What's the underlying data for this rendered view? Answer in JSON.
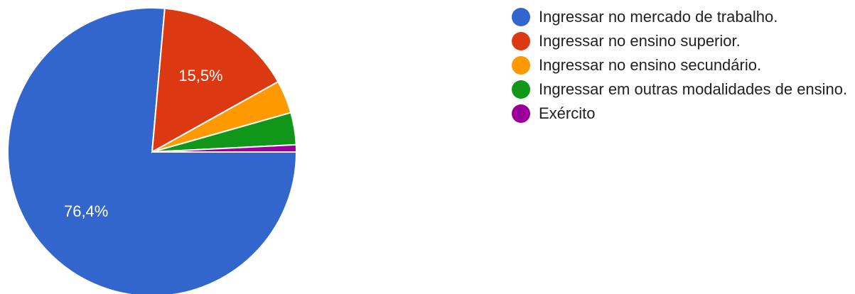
{
  "chart_data": {
    "type": "pie",
    "slices": [
      {
        "label": "Ingressar no mercado de trabalho.",
        "value": 76.4,
        "display": "76,4%",
        "color": "#3366cc"
      },
      {
        "label": "Ingressar no ensino superior.",
        "value": 15.5,
        "display": "15,5%",
        "color": "#dc3912"
      },
      {
        "label": "Ingressar no ensino secundário.",
        "value": 3.7,
        "display": "",
        "color": "#ff9900"
      },
      {
        "label": "Ingressar em outras modalidades de ensino.",
        "value": 3.6,
        "display": "",
        "color": "#109618"
      },
      {
        "label": "Exército",
        "value": 0.8,
        "display": "",
        "color": "#990099"
      }
    ],
    "legend_position": "right"
  }
}
